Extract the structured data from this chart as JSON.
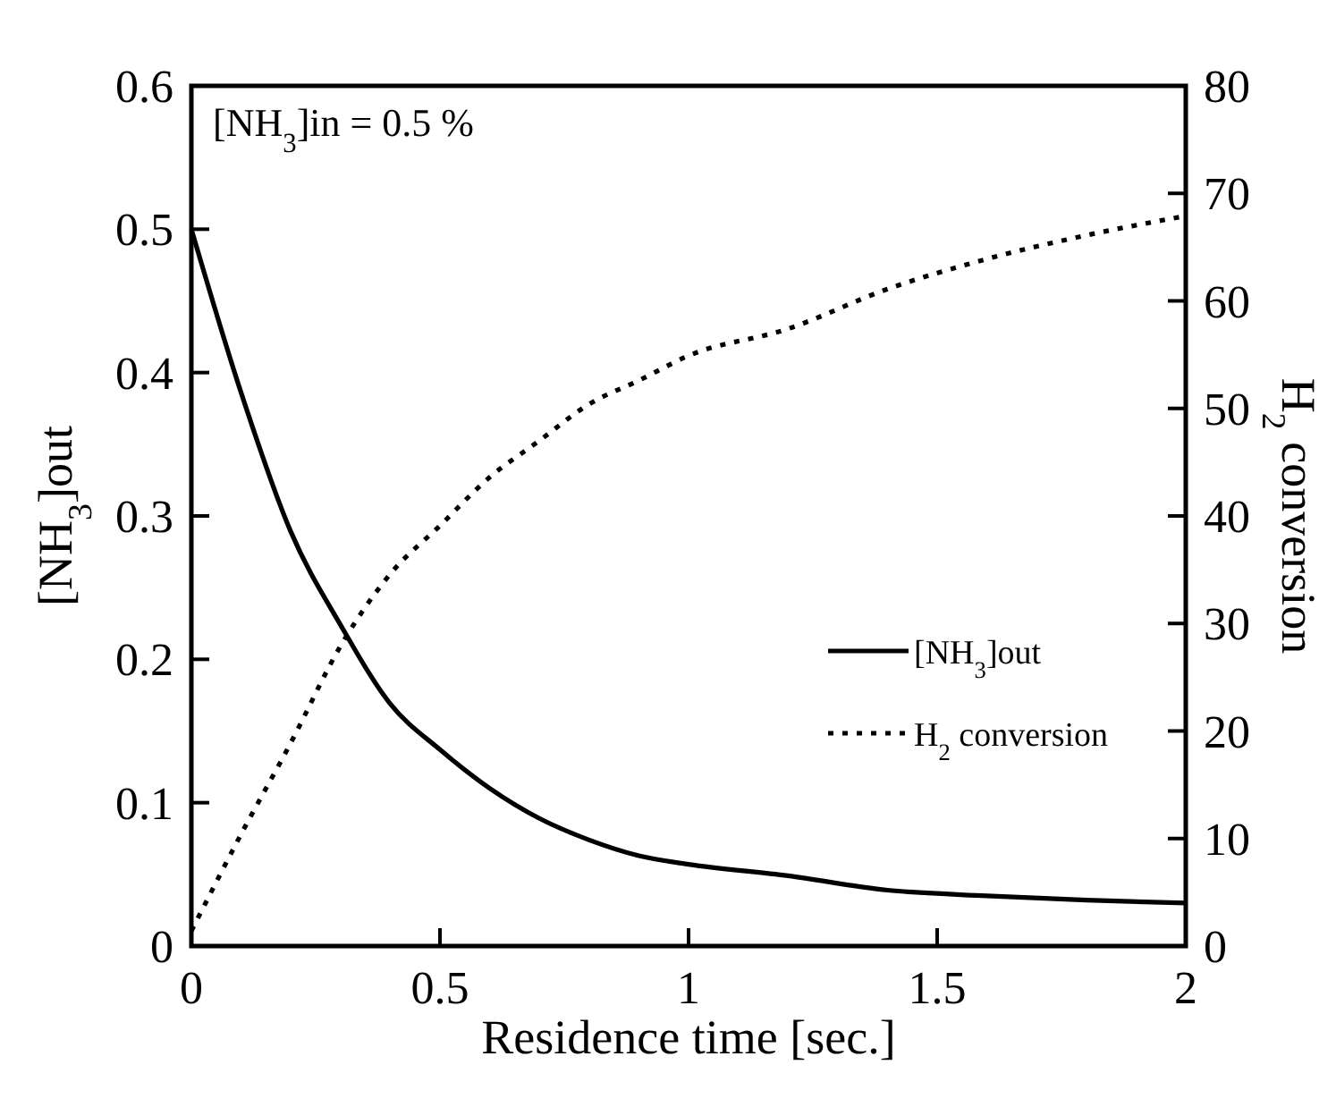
{
  "chart_data": {
    "type": "line",
    "xlabel": "Residence time [sec.]",
    "ylabel": "[NH$_{3}$]out",
    "y2label": "H$_{2}$ conversion",
    "annotations": [
      "[NH$_{3}$]in = 0.5 %"
    ],
    "x": [
      0,
      0.1,
      0.2,
      0.3,
      0.4,
      0.5,
      0.6,
      0.7,
      0.8,
      0.9,
      1.0,
      1.2,
      1.4,
      1.6,
      1.8,
      2.0
    ],
    "series": [
      {
        "name": "[NH$_{3}$]out",
        "color": "#000000",
        "line_style": "solid",
        "values": [
          0.5,
          0.386,
          0.289,
          0.224,
          0.169,
          0.137,
          0.11,
          0.089,
          0.074,
          0.063,
          0.057,
          0.049,
          0.039,
          0.035,
          0.032,
          0.03
        ]
      },
      {
        "name": "H$_{2}$ conversion",
        "color": "#000000",
        "line_style": "dotted",
        "axis": "y2",
        "values": [
          1.4,
          10.4,
          18.9,
          27.9,
          34.6,
          39.1,
          43.6,
          47,
          50.4,
          52.6,
          54.9,
          57.4,
          61.1,
          63.9,
          66.1,
          67.9
        ]
      }
    ],
    "xlim": [
      0,
      2
    ],
    "xticks": [
      0,
      0.5,
      1,
      1.5,
      2
    ],
    "ylim": [
      0,
      0.6
    ],
    "yticks": [
      0,
      0.1,
      0.2,
      0.3,
      0.4,
      0.5,
      0.6
    ],
    "y2lim": [
      0,
      80
    ],
    "y2ticks": [
      0,
      10,
      20,
      30,
      40,
      50,
      60,
      70,
      80
    ],
    "legend": "bottom right",
    "grid": false,
    "marker": "none"
  }
}
